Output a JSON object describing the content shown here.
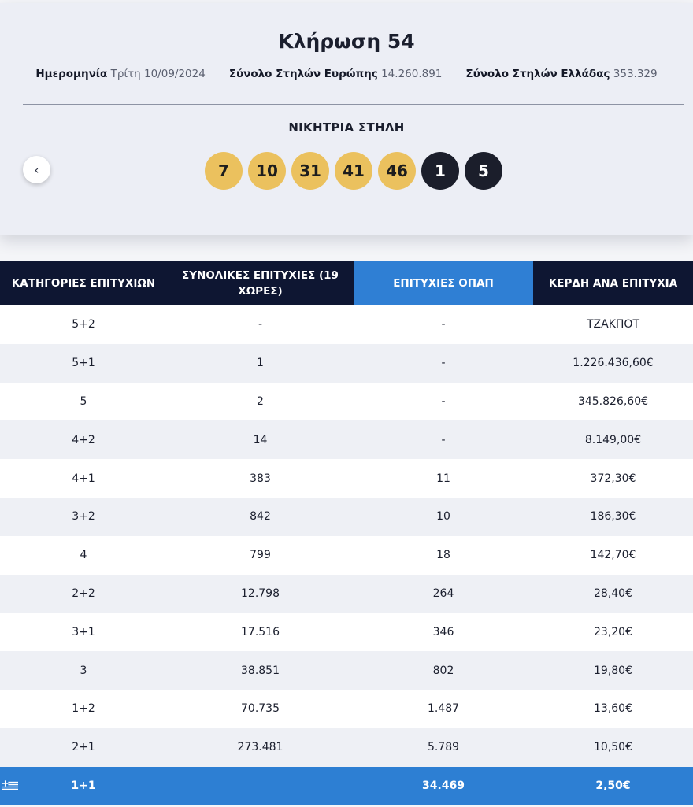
{
  "draw": {
    "title": "Κλήρωση 54",
    "date_label": "Ημερομηνία",
    "date_value": "Τρίτη 10/09/2024",
    "europe_label": "Σύνολο Στηλών Ευρώπης",
    "europe_value": "14.260.891",
    "greece_label": "Σύνολο Στηλών Ελλάδας",
    "greece_value": "353.329",
    "winning_label": "ΝΙΚΗΤΡΙΑ ΣΤΗΛΗ",
    "prev_icon": "chevron-left-icon",
    "prev_glyph": "‹",
    "numbers": [
      "7",
      "10",
      "31",
      "41",
      "46"
    ],
    "stars": [
      "1",
      "5"
    ],
    "colors": {
      "main_ball": "#ebc15e",
      "star_ball": "#1b1e2b",
      "header": "#0e1632",
      "accent": "#2f7fd4"
    }
  },
  "table": {
    "headers": {
      "categories": "ΚΑΤΗΓΟΡΙΕΣ ΕΠΙΤΥΧΙΩΝ",
      "total_wins": "ΣΥΝΟΛΙΚΕΣ ΕΠΙΤΥΧΙΕΣ (19 ΧΩΡΕΣ)",
      "opap_wins": "ΕΠΙΤΥΧΙΕΣ ΟΠΑΠ",
      "prize": "ΚΕΡΔΗ ΑΝΑ ΕΠΙΤΥΧΙΑ"
    },
    "rows": [
      {
        "category": "5+2",
        "total": "-",
        "opap": "-",
        "prize": "ΤΖΑΚΠΟΤ"
      },
      {
        "category": "5+1",
        "total": "1",
        "opap": "-",
        "prize": "1.226.436,60€"
      },
      {
        "category": "5",
        "total": "2",
        "opap": "-",
        "prize": "345.826,60€"
      },
      {
        "category": "4+2",
        "total": "14",
        "opap": "-",
        "prize": "8.149,00€"
      },
      {
        "category": "4+1",
        "total": "383",
        "opap": "11",
        "prize": "372,30€"
      },
      {
        "category": "3+2",
        "total": "842",
        "opap": "10",
        "prize": "186,30€"
      },
      {
        "category": "4",
        "total": "799",
        "opap": "18",
        "prize": "142,70€"
      },
      {
        "category": "2+2",
        "total": "12.798",
        "opap": "264",
        "prize": "28,40€"
      },
      {
        "category": "3+1",
        "total": "17.516",
        "opap": "346",
        "prize": "23,20€"
      },
      {
        "category": "3",
        "total": "38.851",
        "opap": "802",
        "prize": "19,80€"
      },
      {
        "category": "1+2",
        "total": "70.735",
        "opap": "1.487",
        "prize": "13,60€"
      },
      {
        "category": "2+1",
        "total": "273.481",
        "opap": "5.789",
        "prize": "10,50€"
      }
    ],
    "greek_row": {
      "icon": "greek-flag-icon",
      "category": "1+1",
      "total": "",
      "opap": "34.469",
      "prize": "2,50€"
    }
  }
}
